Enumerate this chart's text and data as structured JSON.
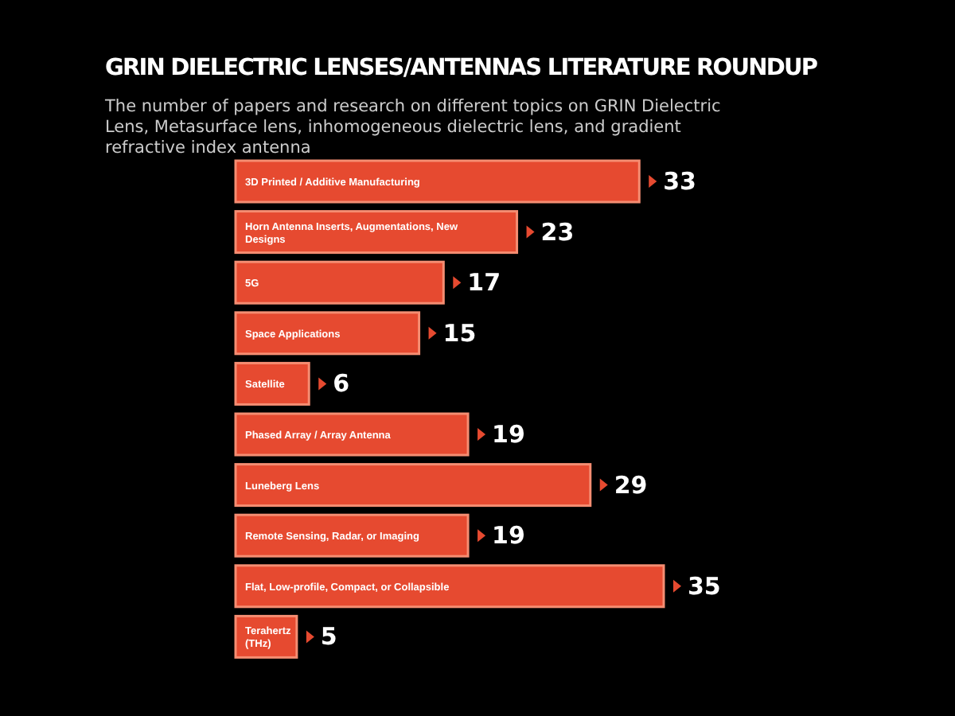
{
  "chart_data": {
    "type": "bar",
    "orientation": "horizontal",
    "title": "GRIN DIELECTRIC LENSES/ANTENNAS LITERATURE ROUNDUP",
    "subtitle": "The number of papers and research on different topics on GRIN Dielectric Lens, Metasurface lens, inhomogeneous dielectric lens, and gradient refractive index antenna",
    "categories": [
      "3D Printed  / Additive Manufacturing",
      "Horn Antenna Inserts, Augmentations, New Designs",
      "5G",
      "Space Applications",
      "Satellite",
      "Phased Array / Array Antenna",
      "Luneberg Lens",
      "Remote Sensing, Radar, or Imaging",
      "Flat, Low-profile, Compact, or Collapsible",
      "Terahertz (THz)"
    ],
    "values": [
      33,
      23,
      17,
      15,
      6,
      19,
      29,
      19,
      35,
      5
    ],
    "color": "#e64a30",
    "data_labels": true,
    "relative": false
  }
}
